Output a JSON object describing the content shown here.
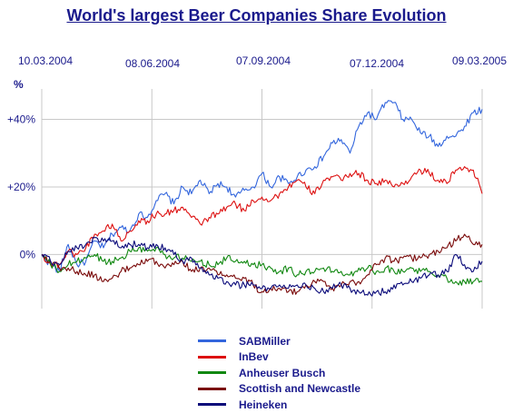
{
  "chart_data": {
    "type": "line",
    "title": "World's largest Beer Companies Share Evolution",
    "ylabel": "%",
    "x_tick_labels": [
      "10.03.2004",
      "08.06.2004",
      "07.09.2004",
      "07.12.2004",
      "09.03.2005"
    ],
    "y_ticks": [
      {
        "value": 40,
        "label": "+40%"
      },
      {
        "value": 20,
        "label": "+20%"
      },
      {
        "value": 0,
        "label": "0%"
      }
    ],
    "ylim": [
      -16,
      49
    ],
    "xlim": [
      0,
      100
    ],
    "grid": true,
    "legend_position": "bottom-center",
    "series": [
      {
        "name": "SABMiller",
        "color": "#3366dd",
        "keypoints": [
          [
            0,
            0
          ],
          [
            2,
            -3
          ],
          [
            4,
            -5
          ],
          [
            6,
            3
          ],
          [
            8,
            -3
          ],
          [
            10,
            -2
          ],
          [
            12,
            4
          ],
          [
            14,
            2
          ],
          [
            16,
            6
          ],
          [
            18,
            8
          ],
          [
            20,
            7
          ],
          [
            22,
            12
          ],
          [
            24,
            11
          ],
          [
            26,
            16
          ],
          [
            28,
            18
          ],
          [
            30,
            15
          ],
          [
            32,
            20
          ],
          [
            34,
            18
          ],
          [
            36,
            22
          ],
          [
            38,
            18
          ],
          [
            40,
            21
          ],
          [
            42,
            20
          ],
          [
            44,
            17
          ],
          [
            46,
            19
          ],
          [
            48,
            20
          ],
          [
            50,
            24
          ],
          [
            52,
            20
          ],
          [
            54,
            23
          ],
          [
            56,
            21
          ],
          [
            58,
            23
          ],
          [
            60,
            25
          ],
          [
            62,
            26
          ],
          [
            64,
            29
          ],
          [
            66,
            33
          ],
          [
            68,
            34
          ],
          [
            70,
            30
          ],
          [
            72,
            38
          ],
          [
            74,
            42
          ],
          [
            76,
            40
          ],
          [
            78,
            45
          ],
          [
            80,
            45
          ],
          [
            82,
            40
          ],
          [
            84,
            40
          ],
          [
            86,
            36
          ],
          [
            88,
            35
          ],
          [
            90,
            32
          ],
          [
            92,
            35
          ],
          [
            94,
            35
          ],
          [
            96,
            38
          ],
          [
            98,
            42
          ],
          [
            100,
            43
          ]
        ]
      },
      {
        "name": "InBev",
        "color": "#dd1111",
        "keypoints": [
          [
            0,
            0
          ],
          [
            2,
            -3
          ],
          [
            4,
            -3
          ],
          [
            6,
            1
          ],
          [
            8,
            0
          ],
          [
            10,
            2
          ],
          [
            12,
            6
          ],
          [
            14,
            7
          ],
          [
            16,
            9
          ],
          [
            18,
            4
          ],
          [
            20,
            7
          ],
          [
            22,
            10
          ],
          [
            24,
            10
          ],
          [
            26,
            12
          ],
          [
            28,
            12
          ],
          [
            30,
            13
          ],
          [
            32,
            14
          ],
          [
            34,
            11
          ],
          [
            36,
            9
          ],
          [
            38,
            11
          ],
          [
            40,
            12
          ],
          [
            42,
            14
          ],
          [
            44,
            15
          ],
          [
            46,
            13
          ],
          [
            48,
            16
          ],
          [
            50,
            17
          ],
          [
            52,
            16
          ],
          [
            54,
            18
          ],
          [
            56,
            20
          ],
          [
            58,
            22
          ],
          [
            60,
            20
          ],
          [
            62,
            18
          ],
          [
            64,
            22
          ],
          [
            66,
            23
          ],
          [
            68,
            22
          ],
          [
            70,
            24
          ],
          [
            72,
            24
          ],
          [
            74,
            22
          ],
          [
            76,
            21
          ],
          [
            78,
            22
          ],
          [
            80,
            20
          ],
          [
            82,
            21
          ],
          [
            84,
            23
          ],
          [
            86,
            25
          ],
          [
            88,
            24
          ],
          [
            90,
            22
          ],
          [
            92,
            21
          ],
          [
            94,
            25
          ],
          [
            96,
            26
          ],
          [
            98,
            25
          ],
          [
            100,
            18
          ]
        ]
      },
      {
        "name": "Anheuser Busch",
        "color": "#118811",
        "keypoints": [
          [
            0,
            0
          ],
          [
            2,
            -3
          ],
          [
            4,
            -5
          ],
          [
            6,
            -3
          ],
          [
            8,
            -2
          ],
          [
            10,
            -1
          ],
          [
            12,
            0
          ],
          [
            14,
            -2
          ],
          [
            16,
            -2
          ],
          [
            18,
            -1
          ],
          [
            20,
            1
          ],
          [
            22,
            2
          ],
          [
            24,
            1
          ],
          [
            26,
            2
          ],
          [
            28,
            0
          ],
          [
            30,
            -1
          ],
          [
            32,
            -1
          ],
          [
            34,
            -2
          ],
          [
            36,
            -2
          ],
          [
            38,
            -3
          ],
          [
            40,
            -3
          ],
          [
            42,
            -1
          ],
          [
            44,
            -2
          ],
          [
            46,
            -2
          ],
          [
            48,
            -3
          ],
          [
            50,
            -3
          ],
          [
            52,
            -4
          ],
          [
            54,
            -5
          ],
          [
            56,
            -4
          ],
          [
            58,
            -6
          ],
          [
            60,
            -5
          ],
          [
            62,
            -5
          ],
          [
            64,
            -4
          ],
          [
            66,
            -5
          ],
          [
            68,
            -5
          ],
          [
            70,
            -6
          ],
          [
            72,
            -4
          ],
          [
            74,
            -4
          ],
          [
            76,
            -5
          ],
          [
            78,
            -4
          ],
          [
            80,
            -5
          ],
          [
            82,
            -5
          ],
          [
            84,
            -4
          ],
          [
            86,
            -5
          ],
          [
            88,
            -5
          ],
          [
            90,
            -6
          ],
          [
            92,
            -7
          ],
          [
            94,
            -8
          ],
          [
            96,
            -8
          ],
          [
            98,
            -8
          ],
          [
            100,
            -8
          ]
        ]
      },
      {
        "name": "Scottish and Newcastle",
        "color": "#7a0a0a",
        "keypoints": [
          [
            0,
            0
          ],
          [
            2,
            -2
          ],
          [
            4,
            -4
          ],
          [
            6,
            -4
          ],
          [
            8,
            -5
          ],
          [
            10,
            -6
          ],
          [
            12,
            -6
          ],
          [
            14,
            -8
          ],
          [
            16,
            -7
          ],
          [
            18,
            -5
          ],
          [
            20,
            -4
          ],
          [
            22,
            -3
          ],
          [
            24,
            -2
          ],
          [
            26,
            -2
          ],
          [
            28,
            -4
          ],
          [
            30,
            -3
          ],
          [
            32,
            -2
          ],
          [
            34,
            -5
          ],
          [
            36,
            -4
          ],
          [
            38,
            -4
          ],
          [
            40,
            -6
          ],
          [
            42,
            -6
          ],
          [
            44,
            -7
          ],
          [
            46,
            -7
          ],
          [
            48,
            -9
          ],
          [
            50,
            -11
          ],
          [
            52,
            -10
          ],
          [
            54,
            -10
          ],
          [
            56,
            -11
          ],
          [
            58,
            -11
          ],
          [
            60,
            -9
          ],
          [
            62,
            -8
          ],
          [
            64,
            -8
          ],
          [
            66,
            -10
          ],
          [
            68,
            -9
          ],
          [
            70,
            -8
          ],
          [
            72,
            -8
          ],
          [
            74,
            -6
          ],
          [
            76,
            -3
          ],
          [
            78,
            -1
          ],
          [
            80,
            -2
          ],
          [
            82,
            -1
          ],
          [
            84,
            -1
          ],
          [
            86,
            -1
          ],
          [
            88,
            0
          ],
          [
            90,
            1
          ],
          [
            92,
            2
          ],
          [
            94,
            4
          ],
          [
            96,
            6
          ],
          [
            98,
            3
          ],
          [
            100,
            3
          ]
        ]
      },
      {
        "name": "Heineken",
        "color": "#0a0a7a",
        "keypoints": [
          [
            0,
            0
          ],
          [
            2,
            -2
          ],
          [
            4,
            -3
          ],
          [
            6,
            1
          ],
          [
            8,
            2
          ],
          [
            10,
            3
          ],
          [
            12,
            5
          ],
          [
            14,
            4
          ],
          [
            16,
            4
          ],
          [
            18,
            2
          ],
          [
            20,
            3
          ],
          [
            22,
            3
          ],
          [
            24,
            2
          ],
          [
            26,
            3
          ],
          [
            28,
            2
          ],
          [
            30,
            0
          ],
          [
            32,
            -2
          ],
          [
            34,
            -1
          ],
          [
            36,
            -4
          ],
          [
            38,
            -6
          ],
          [
            40,
            -7
          ],
          [
            42,
            -8
          ],
          [
            44,
            -9
          ],
          [
            46,
            -9
          ],
          [
            48,
            -9
          ],
          [
            50,
            -10
          ],
          [
            52,
            -10
          ],
          [
            54,
            -9
          ],
          [
            56,
            -10
          ],
          [
            58,
            -9
          ],
          [
            60,
            -9
          ],
          [
            62,
            -10
          ],
          [
            64,
            -11
          ],
          [
            66,
            -10
          ],
          [
            68,
            -9
          ],
          [
            70,
            -10
          ],
          [
            72,
            -11
          ],
          [
            74,
            -12
          ],
          [
            76,
            -11
          ],
          [
            78,
            -11
          ],
          [
            80,
            -9
          ],
          [
            82,
            -9
          ],
          [
            84,
            -8
          ],
          [
            86,
            -7
          ],
          [
            88,
            -6
          ],
          [
            90,
            -6
          ],
          [
            92,
            -5
          ],
          [
            94,
            0
          ],
          [
            96,
            -3
          ],
          [
            98,
            -5
          ],
          [
            100,
            -2
          ]
        ]
      }
    ]
  }
}
